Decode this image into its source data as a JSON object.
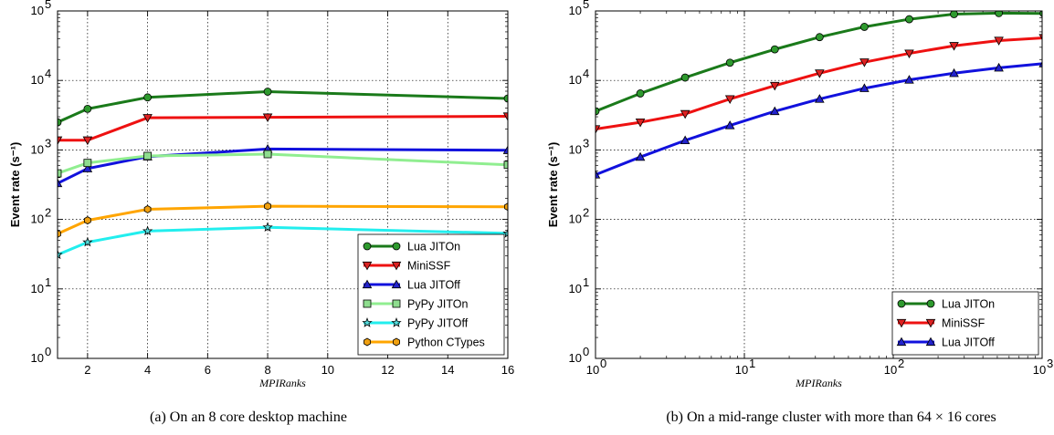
{
  "chart_data": [
    {
      "type": "line",
      "caption": "(a) On an 8 core desktop machine",
      "xlabel": "MPIRanks",
      "ylabel": "Event rate (s⁻¹)",
      "xscale": "linear",
      "yscale": "log",
      "xlim": [
        1,
        16
      ],
      "ylim": [
        1,
        100000
      ],
      "xticks": [
        2,
        4,
        6,
        8,
        10,
        12,
        14,
        16
      ],
      "yticks": [
        1,
        10,
        100,
        1000,
        10000,
        100000
      ],
      "grid": true,
      "legend_position": "lower-right",
      "x": [
        1,
        2,
        4,
        8,
        16
      ],
      "series": [
        {
          "name": "Lua JITOn",
          "values": [
            2500,
            3900,
            5700,
            6900,
            5500
          ],
          "color": "#1a7a1a",
          "marker": "circle",
          "marker_fill": "#2e9a2e"
        },
        {
          "name": "MiniSSF",
          "values": [
            1380,
            1380,
            2900,
            2950,
            3050
          ],
          "color": "#ee1111",
          "marker": "triangle-down",
          "marker_fill": "#dd2222"
        },
        {
          "name": "Lua JITOff",
          "values": [
            330,
            540,
            800,
            1030,
            990
          ],
          "color": "#1111dd",
          "marker": "triangle-up",
          "marker_fill": "#2222cc"
        },
        {
          "name": "PyPy JITOn",
          "values": [
            460,
            650,
            820,
            870,
            610
          ],
          "color": "#90ee90",
          "marker": "square",
          "marker_fill": "#8edd8e"
        },
        {
          "name": "PyPy JITOff",
          "values": [
            31,
            47,
            68,
            77,
            63
          ],
          "color": "#22eeee",
          "marker": "star",
          "marker_fill": "#55dddd"
        },
        {
          "name": "Python CTypes",
          "values": [
            62,
            97,
            140,
            155,
            152
          ],
          "color": "#ffa500",
          "marker": "hexagon",
          "marker_fill": "#f0a010"
        }
      ]
    },
    {
      "type": "line",
      "caption": "(b) On a mid-range cluster with more than 64 × 16 cores",
      "xlabel": "MPIRanks",
      "ylabel": "Event rate (s⁻¹)",
      "xscale": "log",
      "yscale": "log",
      "xlim": [
        1,
        1000
      ],
      "ylim": [
        1,
        100000
      ],
      "xticks": [
        1,
        10,
        100,
        1000
      ],
      "yticks": [
        1,
        10,
        100,
        1000,
        10000,
        100000
      ],
      "grid": true,
      "legend_position": "lower-right",
      "x": [
        1,
        2,
        4,
        8,
        16,
        32,
        64,
        128,
        256,
        512,
        1024
      ],
      "series": [
        {
          "name": "Lua JITOn",
          "values": [
            3600,
            6500,
            11000,
            18000,
            28000,
            42000,
            59000,
            76000,
            90000,
            93000,
            92000
          ],
          "color": "#1a7a1a",
          "marker": "circle",
          "marker_fill": "#2e9a2e"
        },
        {
          "name": "MiniSSF",
          "values": [
            2000,
            2500,
            3300,
            5400,
            8400,
            12700,
            18300,
            24500,
            31500,
            37500,
            41000
          ],
          "color": "#ee1111",
          "marker": "triangle-down",
          "marker_fill": "#dd2222"
        },
        {
          "name": "Lua JITOff",
          "values": [
            440,
            790,
            1370,
            2250,
            3600,
            5400,
            7700,
            10200,
            12700,
            15200,
            17500
          ],
          "color": "#1111dd",
          "marker": "triangle-up",
          "marker_fill": "#2222cc"
        }
      ]
    }
  ]
}
